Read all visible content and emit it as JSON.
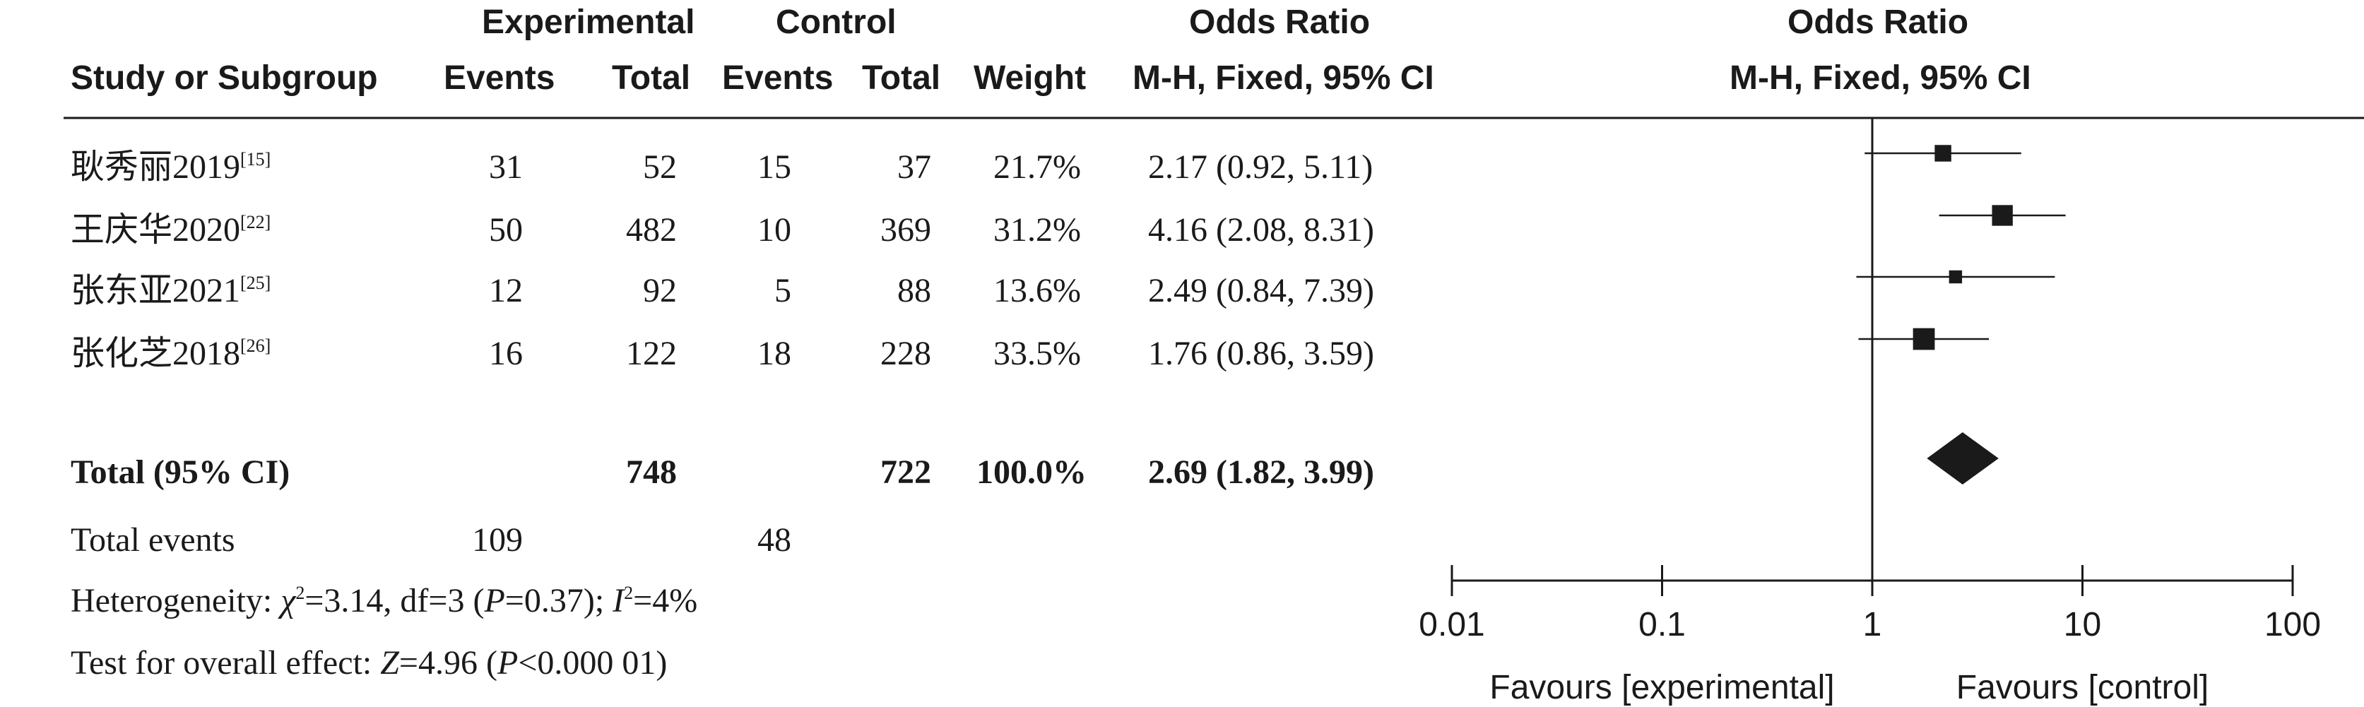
{
  "headers": {
    "experimental": "Experimental",
    "control": "Control",
    "odds_ratio_left": "Odds Ratio",
    "odds_ratio_right": "Odds Ratio",
    "study_or_subgroup": "Study or Subgroup",
    "events_exp": "Events",
    "total_exp": "Total",
    "events_ctl": "Events",
    "total_ctl": "Total",
    "weight": "Weight",
    "method_left": "M-H, Fixed, 95% CI",
    "method_right": "M-H, Fixed, 95% CI"
  },
  "studies": [
    {
      "name": "耿秀丽2019",
      "ref": "[15]",
      "exp_events": "31",
      "exp_total": "52",
      "ctl_events": "15",
      "ctl_total": "37",
      "weight": "21.7%",
      "ci_text": "2.17 (0.92, 5.11)"
    },
    {
      "name": "王庆华2020",
      "ref": "[22]",
      "exp_events": "50",
      "exp_total": "482",
      "ctl_events": "10",
      "ctl_total": "369",
      "weight": "31.2%",
      "ci_text": "4.16 (2.08, 8.31)"
    },
    {
      "name": "张东亚2021",
      "ref": "[25]",
      "exp_events": "12",
      "exp_total": "92",
      "ctl_events": "5",
      "ctl_total": "88",
      "weight": "13.6%",
      "ci_text": "2.49 (0.84, 7.39)"
    },
    {
      "name": "张化芝2018",
      "ref": "[26]",
      "exp_events": "16",
      "exp_total": "122",
      "ctl_events": "18",
      "ctl_total": "228",
      "weight": "33.5%",
      "ci_text": "1.76 (0.86, 3.59)"
    }
  ],
  "total": {
    "label": "Total (95% CI)",
    "exp_total": "748",
    "ctl_total": "722",
    "weight": "100.0%",
    "ci_text": "2.69 (1.82, 3.99)"
  },
  "events": {
    "label": "Total events",
    "exp": "109",
    "ctl": "48"
  },
  "heterogeneity": {
    "prefix": "Heterogeneity: ",
    "chi_sym": "χ",
    "chi_sup": "2",
    "chi_val": "=3.14, df=3 (",
    "p_sym": "P",
    "p_val": "=0.37); ",
    "i_sym": "I",
    "i_sup": "2",
    "i_val": "=4%"
  },
  "overall_effect": {
    "prefix": "Test for overall effect: ",
    "z_sym": "Z",
    "z_val": "=4.96 (",
    "p_sym": "P",
    "p_val": "<0.000 01)"
  },
  "chart_data": {
    "type": "forest",
    "scale": "log",
    "xlim": [
      0.01,
      100
    ],
    "null_line": 1,
    "ticks": [
      {
        "value": 0.01,
        "label": "0.01"
      },
      {
        "value": 0.1,
        "label": "0.1"
      },
      {
        "value": 1,
        "label": "1"
      },
      {
        "value": 10,
        "label": "10"
      },
      {
        "value": 100,
        "label": "100"
      }
    ],
    "xlabel_left": "Favours [experimental]",
    "xlabel_right": "Favours [control]",
    "studies": [
      {
        "or": 2.17,
        "lo": 0.92,
        "hi": 5.11,
        "weight": 21.7
      },
      {
        "or": 4.16,
        "lo": 2.08,
        "hi": 8.31,
        "weight": 31.2
      },
      {
        "or": 2.49,
        "lo": 0.84,
        "hi": 7.39,
        "weight": 13.6
      },
      {
        "or": 1.76,
        "lo": 0.86,
        "hi": 3.59,
        "weight": 33.5
      }
    ],
    "summary": {
      "or": 2.69,
      "lo": 1.82,
      "hi": 3.99
    },
    "colors": {
      "ink": "#1a1a1a"
    }
  }
}
